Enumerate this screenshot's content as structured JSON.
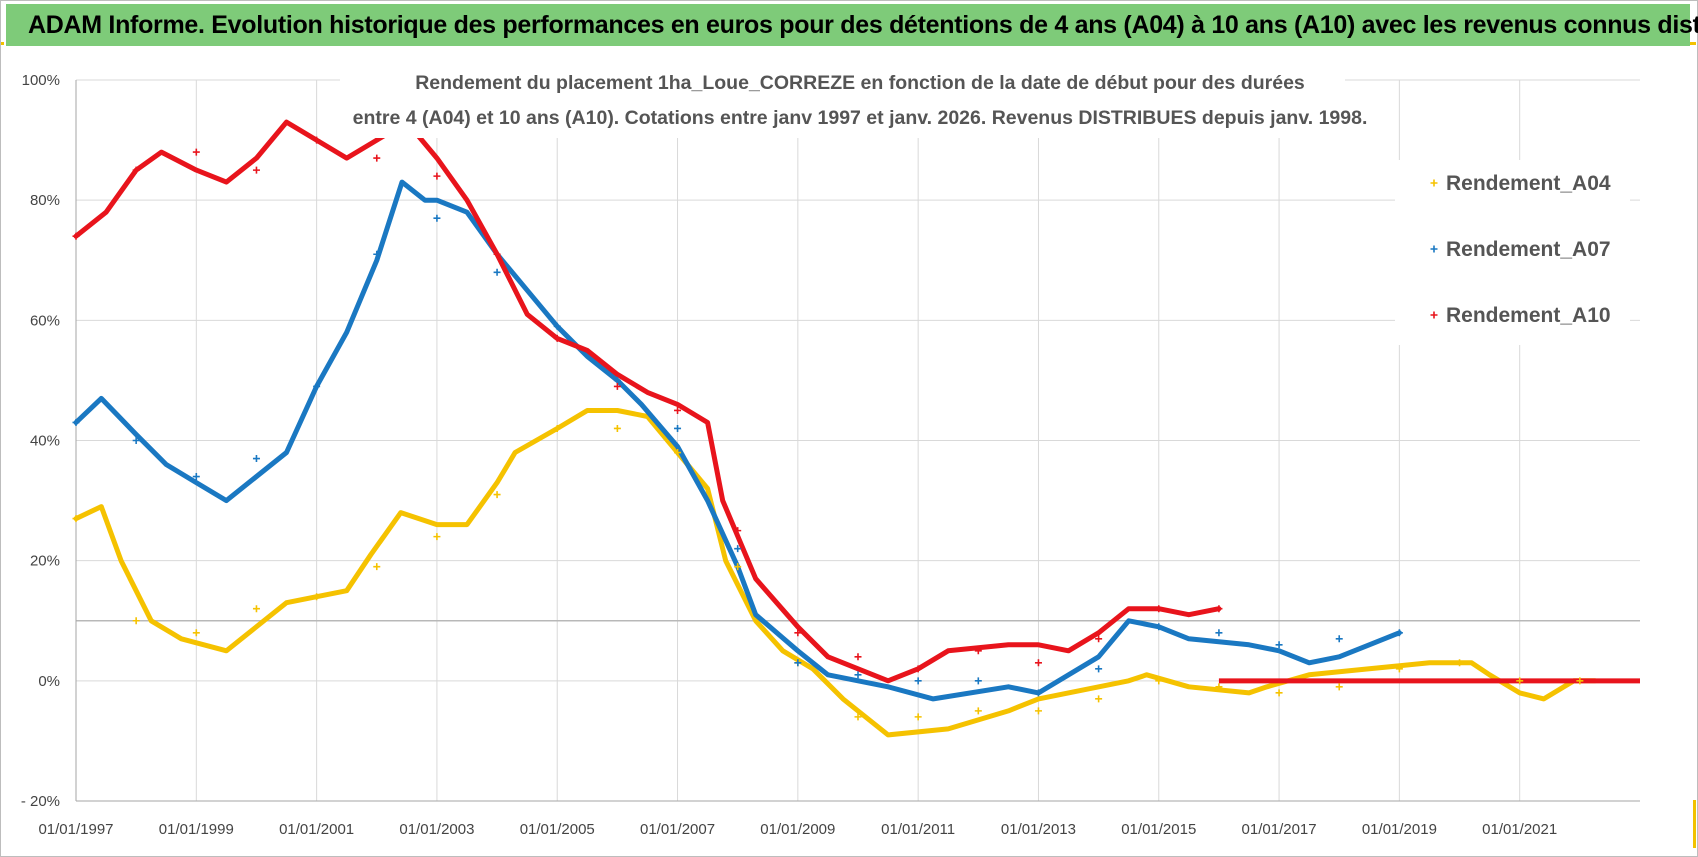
{
  "banner": {
    "title": "ADAM Informe. Evolution historique des performances en euros pour des détentions de 4 ans (A04) à 10 ans (A10) avec les revenus connus distribués"
  },
  "colors": {
    "A04": "#f5c200",
    "A07": "#1a78c2",
    "A10": "#e8141c",
    "banner_bg": "#7ecb79",
    "grid": "#d9d9d9"
  },
  "chart_data": {
    "type": "scatter",
    "title_line1": "Rendement du placement 1ha_Loue_CORREZE en fonction de la date de début pour des durées",
    "title_line2": "entre 4 (A04) et 10 ans (A10). Cotations entre janv 1997 et janv. 2026. Revenus DISTRIBUES depuis janv. 1998.",
    "xlim": [
      1997.0,
      2023.0
    ],
    "ylim": [
      -0.2,
      1.0
    ],
    "x_ticks": [
      1997,
      1999,
      2001,
      2003,
      2005,
      2007,
      2009,
      2011,
      2013,
      2015,
      2017,
      2019,
      2021
    ],
    "x_tick_labels": [
      "01/01/1997",
      "01/01/1999",
      "01/01/2001",
      "01/01/2003",
      "01/01/2005",
      "01/01/2007",
      "01/01/2009",
      "01/01/2011",
      "01/01/2013",
      "01/01/2015",
      "01/01/2017",
      "01/01/2019",
      "01/01/2021"
    ],
    "y_ticks": [
      -0.2,
      0.0,
      0.2,
      0.4,
      0.6,
      0.8,
      1.0
    ],
    "y_tick_labels": [
      "- 20%",
      "0%",
      "20%",
      "40%",
      "60%",
      "80%",
      "100%"
    ],
    "reference_line_y": 0.1,
    "legend_position": "right",
    "series": [
      {
        "name": "Rendement_A04",
        "points": [
          [
            1997.0,
            0.27
          ],
          [
            1997.42,
            0.29
          ],
          [
            1997.75,
            0.2
          ],
          [
            1998.25,
            0.1
          ],
          [
            1998.75,
            0.07
          ],
          [
            1999.5,
            0.05
          ],
          [
            2000.5,
            0.13
          ],
          [
            2001.0,
            0.14
          ],
          [
            2001.5,
            0.15
          ],
          [
            2001.9,
            0.21
          ],
          [
            2002.4,
            0.28
          ],
          [
            2003.0,
            0.26
          ],
          [
            2003.5,
            0.26
          ],
          [
            2004.0,
            0.33
          ],
          [
            2004.3,
            0.38
          ],
          [
            2005.0,
            0.42
          ],
          [
            2005.5,
            0.45
          ],
          [
            2006.0,
            0.45
          ],
          [
            2006.5,
            0.44
          ],
          [
            2007.0,
            0.38
          ],
          [
            2007.5,
            0.32
          ],
          [
            2007.8,
            0.2
          ],
          [
            2008.3,
            0.1
          ],
          [
            2008.75,
            0.05
          ],
          [
            2009.25,
            0.02
          ],
          [
            2009.75,
            -0.03
          ],
          [
            2010.5,
            -0.09
          ],
          [
            2011.5,
            -0.08
          ],
          [
            2012.5,
            -0.05
          ],
          [
            2013.0,
            -0.03
          ],
          [
            2014.5,
            0.0
          ],
          [
            2014.8,
            0.01
          ],
          [
            2015.5,
            -0.01
          ],
          [
            2016.5,
            -0.02
          ],
          [
            2016.8,
            -0.01
          ],
          [
            2017.5,
            0.01
          ],
          [
            2018.5,
            0.02
          ],
          [
            2019.5,
            0.03
          ],
          [
            2020.2,
            0.03
          ],
          [
            2020.5,
            0.01
          ],
          [
            2021.0,
            -0.02
          ],
          [
            2021.4,
            -0.03
          ],
          [
            2021.9,
            0.0
          ],
          [
            2022.25,
            0.0
          ]
        ],
        "scatter_points": [
          [
            1997.0,
            0.27
          ],
          [
            1998.0,
            0.1
          ],
          [
            1999.0,
            0.08
          ],
          [
            2000.0,
            0.12
          ],
          [
            2001.0,
            0.14
          ],
          [
            2002.0,
            0.19
          ],
          [
            2003.0,
            0.24
          ],
          [
            2004.0,
            0.31
          ],
          [
            2005.0,
            0.42
          ],
          [
            2006.0,
            0.42
          ],
          [
            2007.0,
            0.38
          ],
          [
            2008.0,
            0.19
          ],
          [
            2009.0,
            0.03
          ],
          [
            2010.0,
            -0.06
          ],
          [
            2011.0,
            -0.06
          ],
          [
            2012.0,
            -0.05
          ],
          [
            2013.0,
            -0.05
          ],
          [
            2014.0,
            -0.03
          ],
          [
            2015.0,
            0.0
          ],
          [
            2016.0,
            -0.01
          ],
          [
            2017.0,
            -0.02
          ],
          [
            2018.0,
            -0.01
          ],
          [
            2019.0,
            0.02
          ],
          [
            2020.0,
            0.03
          ],
          [
            2021.0,
            0.0
          ],
          [
            2022.0,
            0.0
          ]
        ]
      },
      {
        "name": "Rendement_A07",
        "points": [
          [
            1997.0,
            0.43
          ],
          [
            1997.42,
            0.47
          ],
          [
            1998.0,
            0.41
          ],
          [
            1998.5,
            0.36
          ],
          [
            1999.0,
            0.33
          ],
          [
            1999.5,
            0.3
          ],
          [
            2000.0,
            0.34
          ],
          [
            2000.5,
            0.38
          ],
          [
            2001.0,
            0.49
          ],
          [
            2001.5,
            0.58
          ],
          [
            2002.0,
            0.7
          ],
          [
            2002.42,
            0.83
          ],
          [
            2002.8,
            0.8
          ],
          [
            2003.0,
            0.8
          ],
          [
            2003.5,
            0.78
          ],
          [
            2004.0,
            0.71
          ],
          [
            2004.5,
            0.65
          ],
          [
            2005.0,
            0.59
          ],
          [
            2005.5,
            0.54
          ],
          [
            2006.0,
            0.5
          ],
          [
            2006.4,
            0.46
          ],
          [
            2007.0,
            0.39
          ],
          [
            2007.5,
            0.3
          ],
          [
            2008.0,
            0.19
          ],
          [
            2008.3,
            0.11
          ],
          [
            2009.0,
            0.05
          ],
          [
            2009.5,
            0.01
          ],
          [
            2010.5,
            -0.01
          ],
          [
            2011.25,
            -0.03
          ],
          [
            2012.5,
            -0.01
          ],
          [
            2013.0,
            -0.02
          ],
          [
            2014.0,
            0.04
          ],
          [
            2014.5,
            0.1
          ],
          [
            2015.0,
            0.09
          ],
          [
            2015.5,
            0.07
          ],
          [
            2016.5,
            0.06
          ],
          [
            2017.0,
            0.05
          ],
          [
            2017.5,
            0.03
          ],
          [
            2018.0,
            0.04
          ],
          [
            2018.5,
            0.06
          ],
          [
            2019.0,
            0.08
          ]
        ],
        "scatter_points": [
          [
            1997.0,
            0.43
          ],
          [
            1998.0,
            0.4
          ],
          [
            1999.0,
            0.34
          ],
          [
            2000.0,
            0.37
          ],
          [
            2001.0,
            0.49
          ],
          [
            2002.0,
            0.71
          ],
          [
            2003.0,
            0.77
          ],
          [
            2004.0,
            0.68
          ],
          [
            2005.0,
            0.59
          ],
          [
            2006.0,
            0.5
          ],
          [
            2007.0,
            0.42
          ],
          [
            2008.0,
            0.22
          ],
          [
            2009.0,
            0.03
          ],
          [
            2010.0,
            0.01
          ],
          [
            2011.0,
            0.0
          ],
          [
            2012.0,
            0.0
          ],
          [
            2013.0,
            -0.02
          ],
          [
            2014.0,
            0.02
          ],
          [
            2015.0,
            0.09
          ],
          [
            2016.0,
            0.08
          ],
          [
            2017.0,
            0.06
          ],
          [
            2018.0,
            0.07
          ],
          [
            2019.0,
            0.08
          ]
        ]
      },
      {
        "name": "Rendement_A10",
        "points": [
          [
            1997.0,
            0.74
          ],
          [
            1997.5,
            0.78
          ],
          [
            1998.0,
            0.85
          ],
          [
            1998.42,
            0.88
          ],
          [
            1999.0,
            0.85
          ],
          [
            1999.5,
            0.83
          ],
          [
            2000.0,
            0.87
          ],
          [
            2000.5,
            0.93
          ],
          [
            2001.0,
            0.9
          ],
          [
            2001.5,
            0.87
          ],
          [
            2002.0,
            0.9
          ],
          [
            2002.5,
            0.93
          ],
          [
            2003.0,
            0.87
          ],
          [
            2003.5,
            0.8
          ],
          [
            2004.0,
            0.71
          ],
          [
            2004.5,
            0.61
          ],
          [
            2005.0,
            0.57
          ],
          [
            2005.5,
            0.55
          ],
          [
            2006.0,
            0.51
          ],
          [
            2006.5,
            0.48
          ],
          [
            2007.0,
            0.46
          ],
          [
            2007.5,
            0.43
          ],
          [
            2007.75,
            0.3
          ],
          [
            2008.3,
            0.17
          ],
          [
            2009.0,
            0.09
          ],
          [
            2009.5,
            0.04
          ],
          [
            2010.0,
            0.02
          ],
          [
            2010.5,
            0.0
          ],
          [
            2011.0,
            0.02
          ],
          [
            2011.5,
            0.05
          ],
          [
            2012.5,
            0.06
          ],
          [
            2013.0,
            0.06
          ],
          [
            2013.5,
            0.05
          ],
          [
            2014.0,
            0.08
          ],
          [
            2014.5,
            0.12
          ],
          [
            2015.0,
            0.12
          ],
          [
            2015.5,
            0.11
          ],
          [
            2016.0,
            0.12
          ]
        ],
        "scatter_points": [
          [
            1997.0,
            0.74
          ],
          [
            1998.0,
            0.85
          ],
          [
            1999.0,
            0.88
          ],
          [
            2000.0,
            0.85
          ],
          [
            2001.0,
            0.9
          ],
          [
            2002.0,
            0.87
          ],
          [
            2003.0,
            0.84
          ],
          [
            2004.0,
            0.71
          ],
          [
            2005.0,
            0.57
          ],
          [
            2006.0,
            0.49
          ],
          [
            2007.0,
            0.45
          ],
          [
            2008.0,
            0.25
          ],
          [
            2009.0,
            0.08
          ],
          [
            2010.0,
            0.04
          ],
          [
            2011.0,
            0.02
          ],
          [
            2012.0,
            0.05
          ],
          [
            2013.0,
            0.03
          ],
          [
            2014.0,
            0.07
          ],
          [
            2015.0,
            0.12
          ],
          [
            2016.0,
            0.12
          ]
        ],
        "flat_segment": [
          [
            2016.0,
            0.0
          ],
          [
            2023.0,
            0.0
          ]
        ]
      }
    ]
  }
}
